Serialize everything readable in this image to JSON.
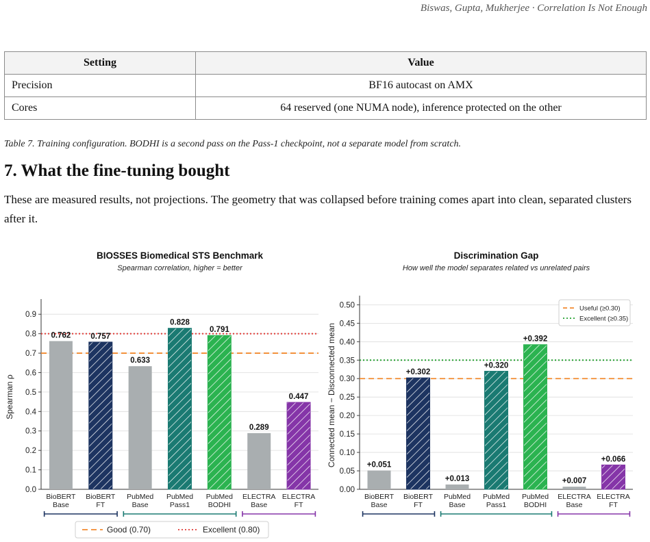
{
  "header": {
    "running_head": "Biswas, Gupta, Mukherjee · Correlation Is Not Enough"
  },
  "table": {
    "headers": [
      "Setting",
      "Value"
    ],
    "rows": [
      [
        "Precision",
        "BF16 autocast on AMX"
      ],
      [
        "Cores",
        "64 reserved (one NUMA node), inference protected on the other"
      ]
    ],
    "caption": "Table 7.  Training configuration. BODHI is a second pass on the Pass-1 checkpoint, not a separate model from scratch."
  },
  "section": {
    "title": "7.  What the fine-tuning bought",
    "paragraph": "These are measured results, not projections. The geometry that was collapsed before training comes apart into clean, separated clusters after it."
  },
  "colors": {
    "grey": "#a9aeb0",
    "navy": "#1d3461",
    "teal": "#1a7a72",
    "green": "#2bb350",
    "purple": "#8535a8",
    "orange": "#f28a2e",
    "red": "#e13a35",
    "dotgreen": "#22a02e"
  },
  "chart_data": [
    {
      "type": "bar",
      "title": "BIOSSES Biomedical STS Benchmark",
      "subtitle": "Spearman correlation, higher = better",
      "ylabel": "Spearman ρ",
      "xlabel": "",
      "ylim": [
        0,
        0.95
      ],
      "yticks": [
        "0.0",
        "0.1",
        "0.2",
        "0.3",
        "0.4",
        "0.5",
        "0.6",
        "0.7",
        "0.8",
        "0.9"
      ],
      "categories": [
        "BioBERT\nBase",
        "BioBERT\nFT",
        "PubMed\nBase",
        "PubMed\nPass1",
        "PubMed\nBODHI",
        "ELECTRA\nBase",
        "ELECTRA\nFT"
      ],
      "values": [
        0.762,
        0.757,
        0.633,
        0.828,
        0.791,
        0.289,
        0.447
      ],
      "value_labels": [
        "0.762",
        "0.757",
        "0.633",
        "0.828",
        "0.791",
        "0.289",
        "0.447"
      ],
      "bar_colors": [
        "grey",
        "navy",
        "grey",
        "teal",
        "green",
        "grey",
        "purple"
      ],
      "hatched": [
        false,
        true,
        false,
        true,
        true,
        false,
        true
      ],
      "thresholds": [
        {
          "value": 0.7,
          "style": "dashed",
          "color": "orange",
          "label": "Good (0.70)"
        },
        {
          "value": 0.8,
          "style": "dotted",
          "color": "red",
          "label": "Excellent (0.80)"
        }
      ],
      "legend": "bottom-center",
      "grid": true
    },
    {
      "type": "bar",
      "title": "Discrimination Gap",
      "subtitle": "How well the model separates related vs unrelated pairs",
      "ylabel": "Connected mean − Disconnected mean",
      "xlabel": "",
      "ylim": [
        0,
        0.51
      ],
      "yticks": [
        "0.00",
        "0.05",
        "0.10",
        "0.15",
        "0.20",
        "0.25",
        "0.30",
        "0.35",
        "0.40",
        "0.45",
        "0.50"
      ],
      "categories": [
        "BioBERT\nBase",
        "BioBERT\nFT",
        "PubMed\nBase",
        "PubMed\nPass1",
        "PubMed\nBODHI",
        "ELECTRA\nBase",
        "ELECTRA\nFT"
      ],
      "values": [
        0.051,
        0.302,
        0.013,
        0.32,
        0.392,
        0.007,
        0.066
      ],
      "value_labels": [
        "+0.051",
        "+0.302",
        "+0.013",
        "+0.320",
        "+0.392",
        "+0.007",
        "+0.066"
      ],
      "bar_colors": [
        "grey",
        "navy",
        "grey",
        "teal",
        "green",
        "grey",
        "purple"
      ],
      "hatched": [
        false,
        true,
        false,
        true,
        true,
        false,
        true
      ],
      "thresholds": [
        {
          "value": 0.3,
          "style": "dashed",
          "color": "orange",
          "label": "Useful (≥0.30)"
        },
        {
          "value": 0.35,
          "style": "dotted",
          "color": "dotgreen",
          "label": "Excellent (≥0.35)"
        }
      ],
      "legend": "top-right",
      "grid": true
    }
  ]
}
